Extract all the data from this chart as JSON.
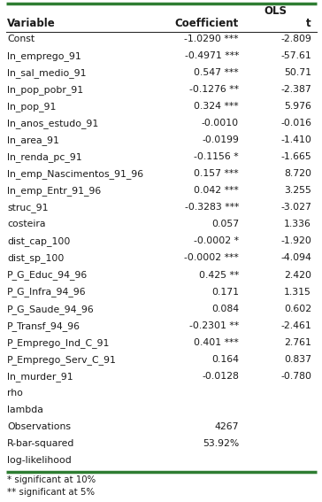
{
  "header_col1": "Variable",
  "header_col2": "OLS",
  "header_coeff": "Coefficient",
  "header_t": "t",
  "rows": [
    [
      "Const",
      "-1.0290 ***",
      "-2.809"
    ],
    [
      "ln_emprego_91",
      "-0.4971 ***",
      "-57.61"
    ],
    [
      "ln_sal_medio_91",
      "0.547 ***",
      "50.71"
    ],
    [
      "ln_pop_pobr_91",
      "-0.1276 **",
      "-2.387"
    ],
    [
      "ln_pop_91",
      "0.324 ***",
      "5.976"
    ],
    [
      "ln_anos_estudo_91",
      "-0.0010",
      "-0.016"
    ],
    [
      "ln_area_91",
      "-0.0199",
      "-1.410"
    ],
    [
      "ln_renda_pc_91",
      "-0.1156 *",
      "-1.665"
    ],
    [
      "ln_emp_Nascimentos_91_96",
      "0.157 ***",
      "8.720"
    ],
    [
      "ln_emp_Entr_91_96",
      "0.042 ***",
      "3.255"
    ],
    [
      "struc_91",
      "-0.3283 ***",
      "-3.027"
    ],
    [
      "costeira",
      "0.057",
      "1.336"
    ],
    [
      "dist_cap_100",
      "-0.0002 *",
      "-1.920"
    ],
    [
      "dist_sp_100",
      "-0.0002 ***",
      "-4.094"
    ],
    [
      "P_G_Educ_94_96",
      "0.425 **",
      "2.420"
    ],
    [
      "P_G_Infra_94_96",
      "0.171",
      "1.315"
    ],
    [
      "P_G_Saude_94_96",
      "0.084",
      "0.602"
    ],
    [
      "P_Transf_94_96",
      "-0.2301 **",
      "-2.461"
    ],
    [
      "P_Emprego_Ind_C_91",
      "0.401 ***",
      "2.761"
    ],
    [
      "P_Emprego_Serv_C_91",
      "0.164",
      "0.837"
    ],
    [
      "ln_murder_91",
      "-0.0128",
      "-0.780"
    ],
    [
      "rho",
      "",
      ""
    ],
    [
      "lambda",
      "",
      ""
    ],
    [
      "Observations",
      "4267",
      ""
    ],
    [
      "R-bar-squared",
      "53.92%",
      ""
    ],
    [
      "log-likelihood",
      "",
      ""
    ]
  ],
  "footnotes": [
    "* significant at 10%",
    "** significant at 5%"
  ],
  "border_color": "#2e7d32",
  "bg_color": "#ffffff",
  "font_color": "#1a1a1a",
  "font_size": 7.8,
  "header_font_size": 8.5
}
